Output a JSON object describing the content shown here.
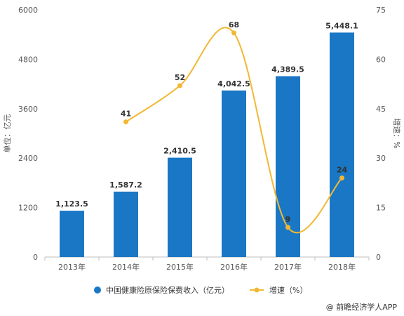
{
  "chart_data": {
    "type": "bar",
    "categories": [
      "2013年",
      "2014年",
      "2015年",
      "2016年",
      "2017年",
      "2018年"
    ],
    "series": [
      {
        "name": "中国健康险原保险保费收入（亿元）",
        "type": "bar",
        "axis": "left",
        "values": [
          1123.5,
          1587.2,
          2410.5,
          4042.5,
          4389.5,
          5448.1
        ],
        "labels": [
          "1,123.5",
          "1,587.2",
          "2,410.5",
          "4,042.5",
          "4,389.5",
          "5,448.1"
        ],
        "color": "#1a77c5"
      },
      {
        "name": "增速（%）",
        "type": "line",
        "smooth": true,
        "axis": "right",
        "values": [
          null,
          41,
          52,
          68,
          9,
          24
        ],
        "labels": [
          "",
          "41",
          "52",
          "68",
          "9",
          "24"
        ],
        "color": "#f2b833"
      }
    ],
    "ylabel": "单位：亿元",
    "y2label": "增速：%",
    "ylim": [
      0,
      6000
    ],
    "yticks": [
      "0",
      "1200",
      "2400",
      "3600",
      "4800",
      "6000"
    ],
    "y2lim": [
      0,
      75
    ],
    "y2ticks": [
      "0",
      "15",
      "30",
      "45",
      "60",
      "75"
    ],
    "grid": false,
    "legend": "bottom"
  },
  "credit": "@ 前瞻经济学人APP"
}
